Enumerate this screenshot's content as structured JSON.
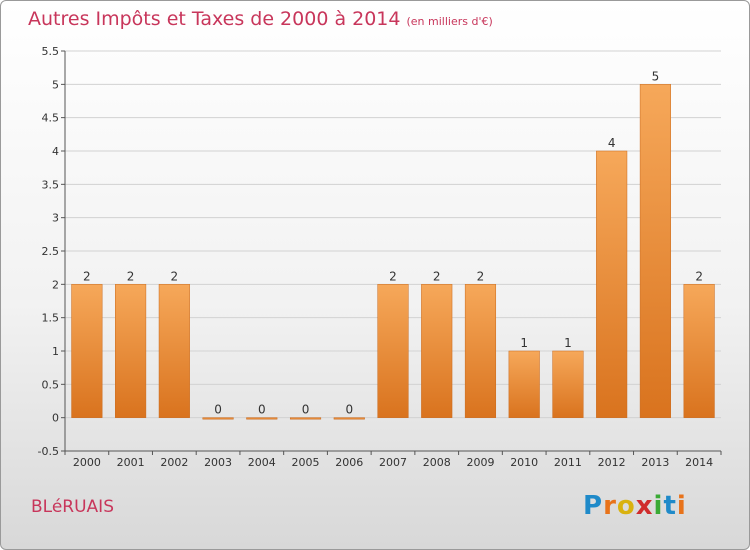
{
  "title": "Autres Impôts et Taxes de 2000 à 2014",
  "subtitle": "(en milliers d'€)",
  "place": "BLéRUAIS",
  "logo": {
    "text": "Proxiti",
    "letters": [
      "P",
      "r",
      "o",
      "x",
      "i",
      "t",
      "i"
    ],
    "colors": [
      "#1f8ac9",
      "#e8731a",
      "#d9b20f",
      "#d02c2c",
      "#3aaa35",
      "#1f8ac9",
      "#e8731a"
    ]
  },
  "colors": {
    "title": "#c8365b",
    "bar_light": "#f6a85a",
    "bar_dark": "#d9731e",
    "grid": "#d2d2d2",
    "axis": "#555555"
  },
  "chart_data": {
    "type": "bar",
    "categories": [
      "2000",
      "2001",
      "2002",
      "2003",
      "2004",
      "2005",
      "2006",
      "2007",
      "2008",
      "2009",
      "2010",
      "2011",
      "2012",
      "2013",
      "2014"
    ],
    "values": [
      2,
      2,
      2,
      0,
      0,
      0,
      0,
      2,
      2,
      2,
      1,
      1,
      4,
      5,
      2
    ],
    "ylim": [
      -0.5,
      5.5
    ],
    "yticks": [
      "-0.5",
      "0",
      "0.5",
      "1",
      "1.5",
      "2",
      "2.5",
      "3",
      "3.5",
      "4",
      "4.5",
      "5",
      "5.5"
    ],
    "ytick_values": [
      -0.5,
      0,
      0.5,
      1,
      1.5,
      2,
      2.5,
      3,
      3.5,
      4,
      4.5,
      5,
      5.5
    ],
    "grid": true
  }
}
